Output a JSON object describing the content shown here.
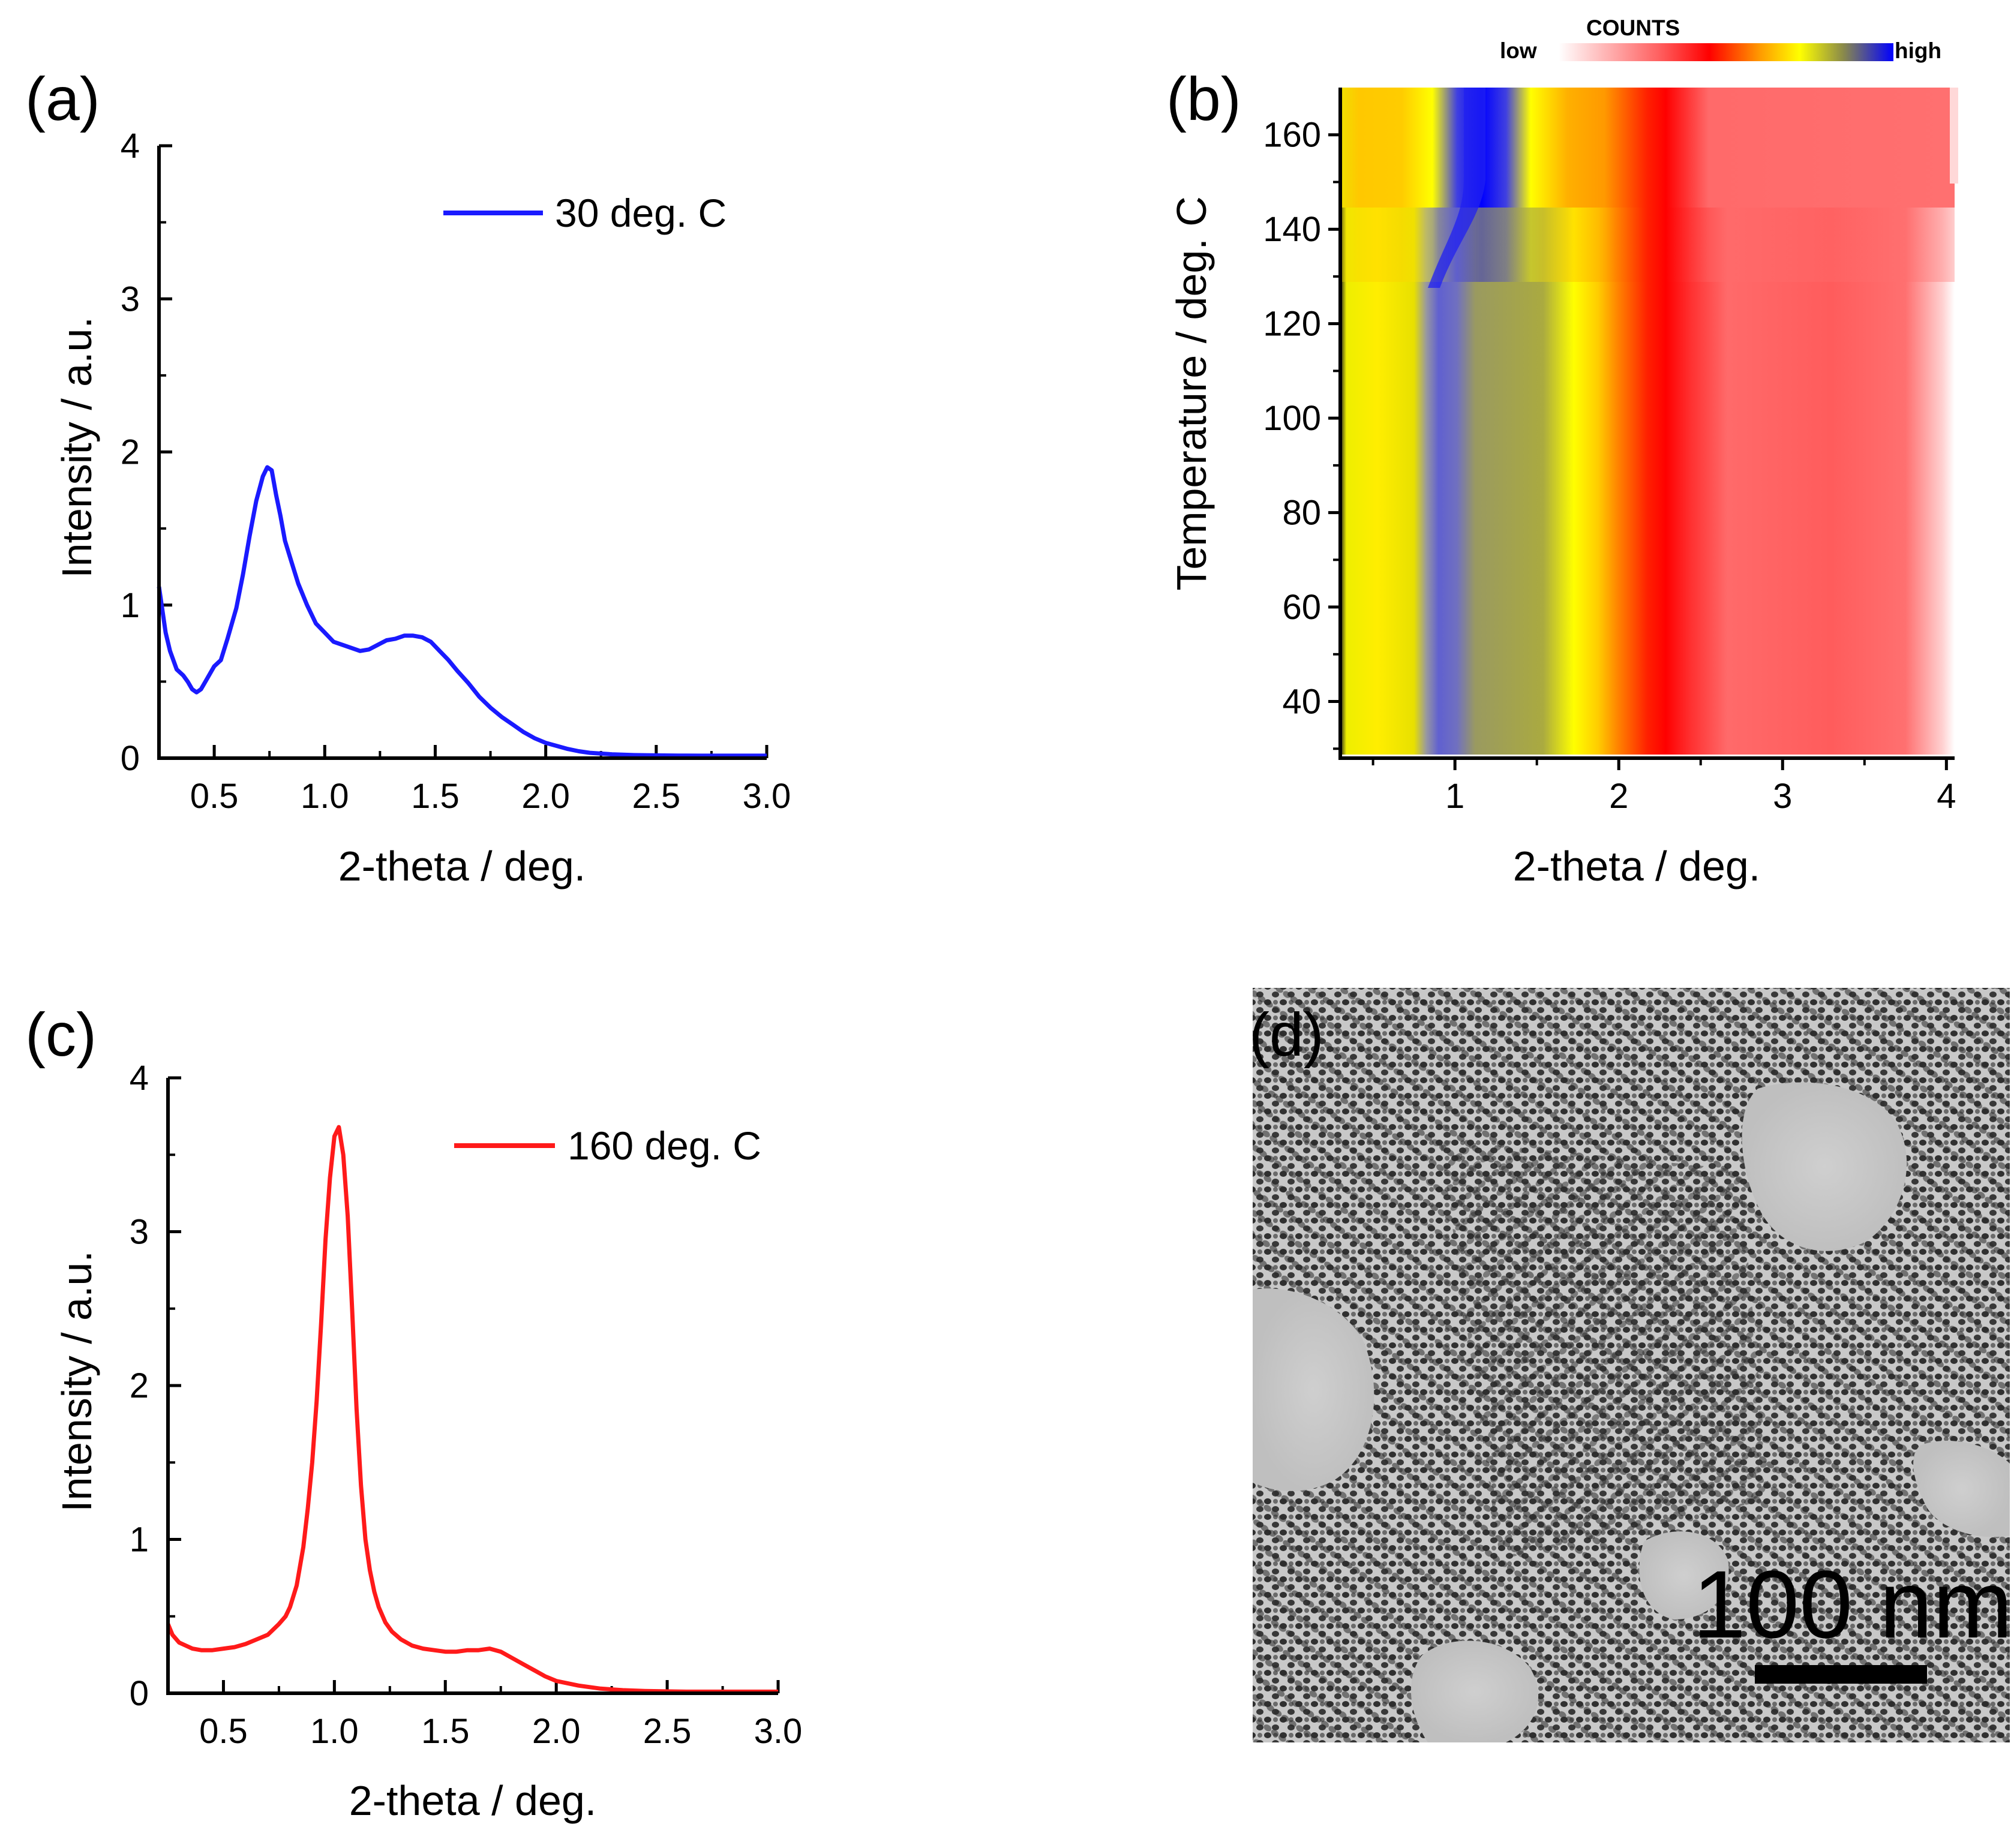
{
  "figure": {
    "panel_labels": [
      "(a)",
      "(b)",
      "(c)",
      "(d)"
    ]
  },
  "chart_data": [
    {
      "panel": "(a)",
      "type": "line",
      "xlabel": "2-theta / deg.",
      "ylabel": "Intensity / a.u.",
      "xlim": [
        0.25,
        3.0
      ],
      "ylim": [
        0,
        4
      ],
      "xticks": [
        0.5,
        1.0,
        1.5,
        2.0,
        2.5,
        3.0
      ],
      "xtick_labels": [
        "0.5",
        "1.0",
        "1.5",
        "2.0",
        "2.5",
        "3.0"
      ],
      "yticks": [
        0,
        1,
        2,
        3,
        4
      ],
      "ytick_labels": [
        "0",
        "1",
        "2",
        "3",
        "4"
      ],
      "legend_position": "top-right",
      "series": [
        {
          "name": "30 deg. C",
          "color": "#1a1aff",
          "x": [
            0.25,
            0.28,
            0.3,
            0.33,
            0.36,
            0.38,
            0.4,
            0.42,
            0.44,
            0.46,
            0.48,
            0.5,
            0.53,
            0.56,
            0.6,
            0.63,
            0.66,
            0.69,
            0.72,
            0.74,
            0.76,
            0.78,
            0.8,
            0.82,
            0.85,
            0.88,
            0.92,
            0.96,
            1.0,
            1.04,
            1.08,
            1.12,
            1.16,
            1.2,
            1.24,
            1.28,
            1.32,
            1.36,
            1.4,
            1.44,
            1.48,
            1.52,
            1.56,
            1.6,
            1.65,
            1.7,
            1.75,
            1.8,
            1.85,
            1.9,
            1.95,
            2.0,
            2.05,
            2.1,
            2.15,
            2.2,
            2.3,
            2.4,
            2.5,
            2.6,
            2.7,
            2.8,
            2.9,
            3.0
          ],
          "y": [
            1.12,
            0.82,
            0.7,
            0.58,
            0.54,
            0.5,
            0.45,
            0.43,
            0.45,
            0.5,
            0.55,
            0.6,
            0.64,
            0.78,
            0.98,
            1.2,
            1.45,
            1.68,
            1.84,
            1.9,
            1.88,
            1.72,
            1.58,
            1.42,
            1.28,
            1.14,
            1.0,
            0.88,
            0.82,
            0.76,
            0.74,
            0.72,
            0.7,
            0.71,
            0.74,
            0.77,
            0.78,
            0.8,
            0.8,
            0.79,
            0.76,
            0.7,
            0.64,
            0.57,
            0.49,
            0.4,
            0.33,
            0.27,
            0.22,
            0.17,
            0.13,
            0.1,
            0.08,
            0.06,
            0.045,
            0.035,
            0.025,
            0.02,
            0.018,
            0.017,
            0.016,
            0.016,
            0.016,
            0.016
          ]
        }
      ]
    },
    {
      "panel": "(b)",
      "type": "heatmap",
      "xlabel": "2-theta / deg.",
      "ylabel": "Temperature / deg. C",
      "xlim": [
        0.3,
        4.05
      ],
      "ylim": [
        28,
        170
      ],
      "xticks": [
        1,
        2,
        3,
        4
      ],
      "xtick_labels": [
        "1",
        "2",
        "3",
        "4"
      ],
      "yticks": [
        40,
        60,
        80,
        100,
        120,
        140,
        160
      ],
      "ytick_labels": [
        "40",
        "60",
        "80",
        "100",
        "120",
        "140",
        "160"
      ],
      "colorbar": {
        "title": "COUNTS",
        "low_label": "low",
        "high_label": "high",
        "colors": [
          "#ffffff",
          "#ff0000",
          "#ffff00",
          "#0000ff"
        ]
      },
      "features": [
        {
          "name": "primary peak",
          "low_T_position_deg": 0.85,
          "high_T_position_deg": 1.1,
          "transition_T": 140
        },
        {
          "name": "red band",
          "position_deg": 2.2
        }
      ]
    },
    {
      "panel": "(c)",
      "type": "line",
      "xlabel": "2-theta / deg.",
      "ylabel": "Intensity / a.u.",
      "xlim": [
        0.25,
        3.0
      ],
      "ylim": [
        0,
        4
      ],
      "xticks": [
        0.5,
        1.0,
        1.5,
        2.0,
        2.5,
        3.0
      ],
      "xtick_labels": [
        "0.5",
        "1.0",
        "1.5",
        "2.0",
        "2.5",
        "3.0"
      ],
      "yticks": [
        0,
        1,
        2,
        3,
        4
      ],
      "ytick_labels": [
        "0",
        "1",
        "2",
        "3",
        "4"
      ],
      "legend_position": "top-right",
      "series": [
        {
          "name": "160 deg. C",
          "color": "#ff1a1a",
          "x": [
            0.25,
            0.27,
            0.3,
            0.33,
            0.36,
            0.4,
            0.45,
            0.5,
            0.55,
            0.6,
            0.65,
            0.7,
            0.75,
            0.78,
            0.8,
            0.83,
            0.86,
            0.88,
            0.9,
            0.92,
            0.94,
            0.96,
            0.98,
            1.0,
            1.02,
            1.04,
            1.06,
            1.08,
            1.1,
            1.12,
            1.14,
            1.16,
            1.18,
            1.2,
            1.23,
            1.26,
            1.3,
            1.35,
            1.4,
            1.45,
            1.5,
            1.55,
            1.6,
            1.65,
            1.7,
            1.75,
            1.8,
            1.85,
            1.9,
            1.95,
            2.0,
            2.1,
            2.2,
            2.3,
            2.4,
            2.5,
            2.6,
            2.8,
            3.0
          ],
          "y": [
            0.45,
            0.38,
            0.33,
            0.31,
            0.29,
            0.28,
            0.28,
            0.29,
            0.3,
            0.32,
            0.35,
            0.38,
            0.45,
            0.5,
            0.56,
            0.7,
            0.95,
            1.2,
            1.5,
            1.9,
            2.4,
            2.95,
            3.35,
            3.62,
            3.68,
            3.5,
            3.1,
            2.5,
            1.85,
            1.35,
            1.0,
            0.8,
            0.66,
            0.56,
            0.46,
            0.4,
            0.35,
            0.31,
            0.29,
            0.28,
            0.27,
            0.27,
            0.28,
            0.28,
            0.29,
            0.27,
            0.23,
            0.19,
            0.15,
            0.11,
            0.08,
            0.05,
            0.03,
            0.02,
            0.015,
            0.012,
            0.01,
            0.01,
            0.01
          ]
        }
      ]
    }
  ],
  "tem_image": {
    "panel": "(d)",
    "scale_bar_label": "100 nm"
  }
}
